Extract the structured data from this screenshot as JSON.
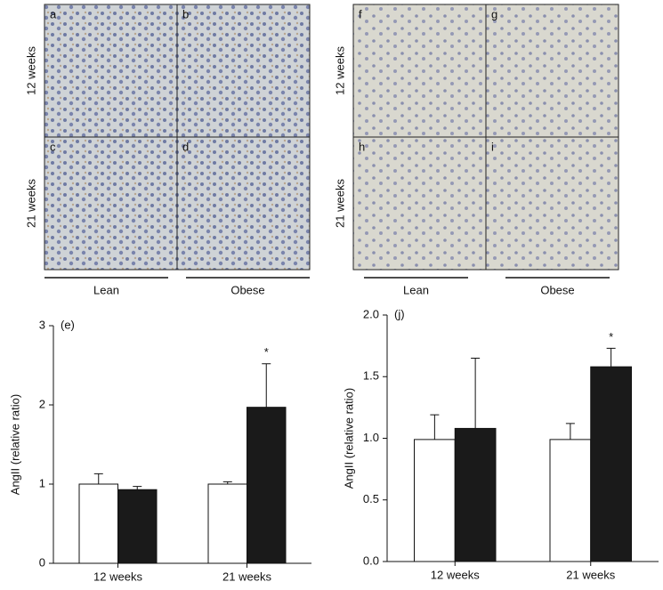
{
  "figure": {
    "left": {
      "panels": [
        "a",
        "b",
        "c",
        "d"
      ],
      "rows": [
        "12 weeks",
        "21 weeks"
      ],
      "columns": [
        "Lean",
        "Obese"
      ]
    },
    "right": {
      "panels": [
        "f",
        "g",
        "h",
        "i"
      ],
      "rows": [
        "12 weeks",
        "21 weeks"
      ],
      "columns": [
        "Lean",
        "Obese"
      ]
    }
  },
  "chart_data": [
    {
      "type": "bar",
      "title": "(e)",
      "y_label": "AngII (relative ratio)",
      "categories": [
        "12 weeks",
        "21 weeks"
      ],
      "series": [
        {
          "color": "#ffffff",
          "values": [
            1.0,
            1.0
          ],
          "errors": [
            0.13,
            0.03
          ]
        },
        {
          "color": "#1a1a1a",
          "values": [
            0.93,
            1.97
          ],
          "errors": [
            0.04,
            0.55
          ]
        }
      ],
      "annotation": "*",
      "ylim": [
        0,
        3
      ],
      "yticks": [
        0,
        1,
        2,
        3
      ]
    },
    {
      "type": "bar",
      "title": "(j)",
      "y_label": "AngII (relative ratio)",
      "categories": [
        "12 weeks",
        "21 weeks"
      ],
      "series": [
        {
          "color": "#ffffff",
          "values": [
            0.99,
            0.99
          ],
          "errors": [
            0.2,
            0.13
          ]
        },
        {
          "color": "#1a1a1a",
          "values": [
            1.08,
            1.58
          ],
          "errors": [
            0.57,
            0.15
          ]
        }
      ],
      "annotation": "*",
      "ylim": [
        0,
        2
      ],
      "yticks": [
        {
          "value": 0,
          "label": "0.0"
        },
        0.5,
        {
          "value": 1,
          "label": "1.0"
        },
        1.5,
        {
          "value": 2,
          "label": "2.0"
        }
      ]
    }
  ]
}
